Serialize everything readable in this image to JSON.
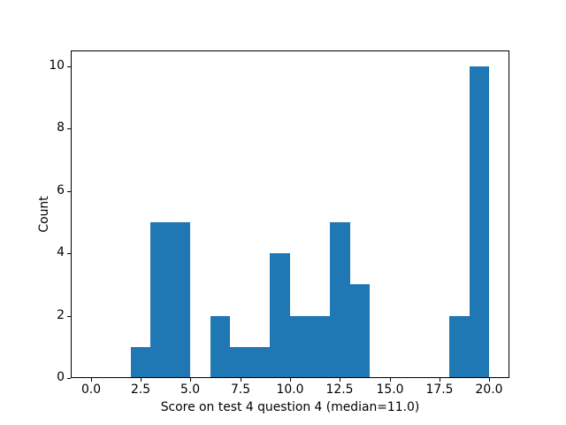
{
  "figure": {
    "background": "#ffffff",
    "text_color": "#000000",
    "xlabel": "Score on test 4 question 4 (median=11.0)",
    "ylabel": "Count"
  },
  "chart_data": {
    "type": "bar",
    "subtype": "histogram",
    "title": "",
    "xlabel": "Score on test 4 question 4 (median=11.0)",
    "ylabel": "Count",
    "bar_color": "#1f77b4",
    "bin_edges": [
      0,
      1,
      2,
      3,
      4,
      5,
      6,
      7,
      8,
      9,
      10,
      11,
      12,
      13,
      14,
      15,
      16,
      17,
      18,
      19,
      20
    ],
    "counts": [
      0,
      0,
      1,
      5,
      5,
      0,
      2,
      1,
      1,
      4,
      2,
      2,
      5,
      3,
      0,
      0,
      0,
      0,
      2,
      10
    ],
    "median_annotated": 11.0,
    "xlim": [
      -1,
      21
    ],
    "ylim": [
      0,
      10.5
    ],
    "grid": false,
    "legend": false,
    "x_tick_values": [
      0,
      2.5,
      5,
      7.5,
      10,
      12.5,
      15,
      17.5,
      20
    ],
    "x_tick_labels": [
      "0.0",
      "2.5",
      "5.0",
      "7.5",
      "10.0",
      "12.5",
      "15.0",
      "17.5",
      "20.0"
    ],
    "y_tick_values": [
      0,
      2,
      4,
      6,
      8,
      10
    ],
    "y_tick_labels": [
      "0",
      "2",
      "4",
      "6",
      "8",
      "10"
    ]
  }
}
